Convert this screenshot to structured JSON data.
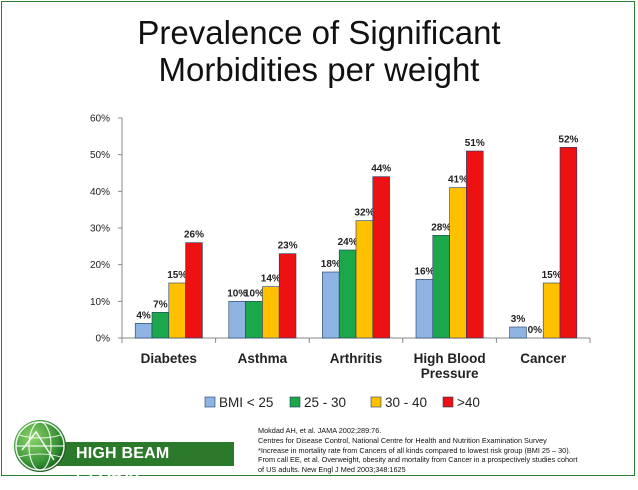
{
  "slide": {
    "title_line1": "Prevalence of Significant",
    "title_line2": "Morbidities per weight"
  },
  "chart_data": {
    "type": "bar",
    "title": "Prevalence of Significant Morbidities per weight",
    "categories": [
      [
        "Diabetes"
      ],
      [
        "Asthma"
      ],
      [
        "Arthritis"
      ],
      [
        "High Blood",
        "Pressure"
      ],
      [
        "Cancer"
      ]
    ],
    "series": [
      {
        "name": "BMI < 25",
        "color": "#8eb4e3",
        "values": [
          4,
          10,
          18,
          16,
          3
        ],
        "labels": [
          "4%",
          "10%",
          "18%",
          "16%",
          "3%"
        ]
      },
      {
        "name": "25 - 30",
        "color": "#1aa84a",
        "values": [
          7,
          10,
          24,
          28,
          0
        ],
        "labels": [
          "7%",
          "10%",
          "24%",
          "28%",
          "0%"
        ]
      },
      {
        "name": "30 - 40",
        "color": "#ffc000",
        "values": [
          15,
          14,
          32,
          41,
          15
        ],
        "labels": [
          "15%",
          "14%",
          "32%",
          "41%",
          "15%"
        ]
      },
      {
        "name": ">40",
        "color": "#ee1111",
        "values": [
          26,
          23,
          44,
          51,
          52
        ],
        "labels": [
          "26%",
          "23%",
          "44%",
          "51%",
          "52%"
        ]
      }
    ],
    "ylim": [
      0,
      60
    ],
    "yticks": [
      0,
      10,
      20,
      30,
      40,
      50,
      60
    ],
    "ytick_labels": [
      "0%",
      "10%",
      "20%",
      "30%",
      "40%",
      "50%",
      "60%"
    ],
    "legend_position": "bottom",
    "grid": false
  },
  "logo": {
    "text": "HIGH BEAM GLOBAL"
  },
  "references": [
    "Mokdad AH, et al. JAMA 2002;289:76.",
    "Centres for Disease Control, National Centre for Health and Nutrition Examination Survey",
    "*Increase in mortality rate from Cancers of all kinds compared to lowest risk group (BMI 25 – 30).",
    "From call EE, et al. Overweight, obesity and mortality from Cancer in a prospectively studies cohort",
    "of US adults. New Engl J Med 2003;348:1625"
  ]
}
